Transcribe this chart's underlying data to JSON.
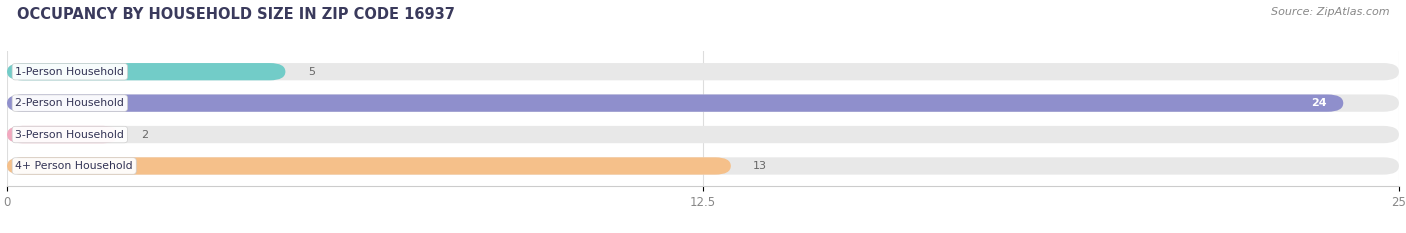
{
  "title": "OCCUPANCY BY HOUSEHOLD SIZE IN ZIP CODE 16937",
  "source": "Source: ZipAtlas.com",
  "categories": [
    "1-Person Household",
    "2-Person Household",
    "3-Person Household",
    "4+ Person Household"
  ],
  "values": [
    5,
    24,
    2,
    13
  ],
  "bar_colors": [
    "#72ccc8",
    "#8f8fcc",
    "#f2a8bf",
    "#f5c08a"
  ],
  "background_color": "#ffffff",
  "bar_bg_color": "#e8e8e8",
  "xlim": [
    0,
    25
  ],
  "xticks": [
    0,
    12.5,
    25
  ],
  "title_color": "#3a3a5c",
  "source_color": "#888888",
  "value_label_color_inside": "#ffffff",
  "value_label_color_outside": "#666666"
}
